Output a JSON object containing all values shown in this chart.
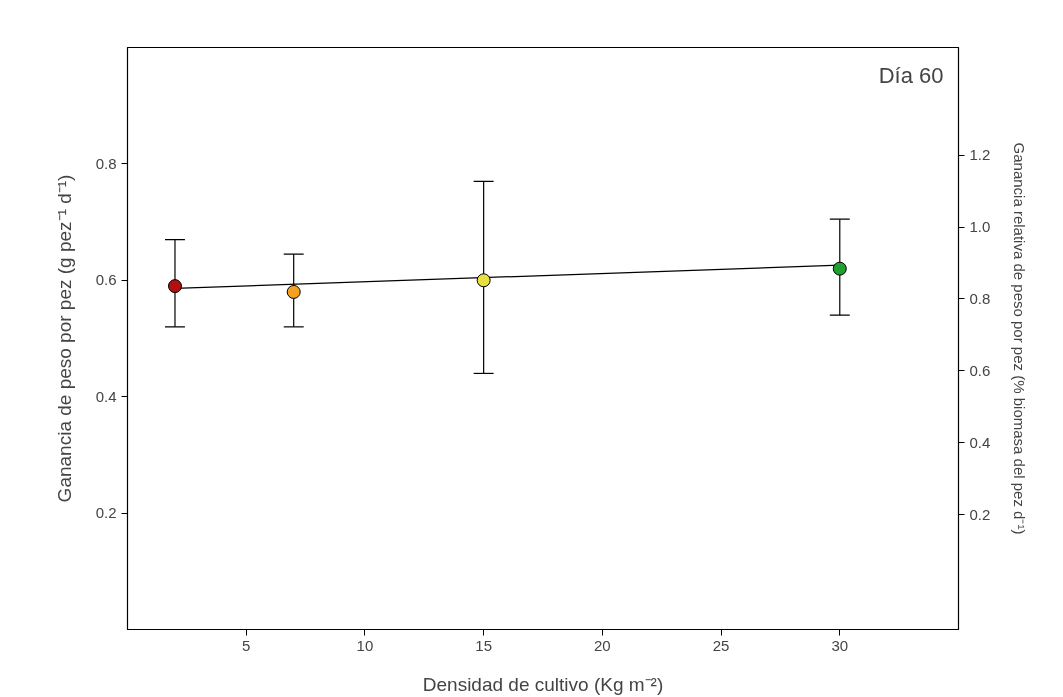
{
  "chart_data": {
    "type": "scatter",
    "xlabel": "Densidad de cultivo (Kg m⁻²)",
    "ylabel": "Ganancia de peso por pez (g pez⁻¹ d⁻¹)",
    "y2label": "Ganancia relativa de peso por pez (% biomasa del pez d⁻¹)",
    "annotations": [
      "Día 60"
    ],
    "xlim": [
      0,
      35
    ],
    "xticks": [
      5,
      10,
      15,
      20,
      25,
      30
    ],
    "ylim": [
      0,
      1.0
    ],
    "yticks": [
      0.2,
      0.4,
      0.6,
      0.8
    ],
    "y2lim": [
      -0.12,
      1.5
    ],
    "y2ticks": [
      0.2,
      0.4,
      0.6,
      0.8,
      {
        "value": 1.0,
        "label": "1.0"
      },
      1.2
    ],
    "grid": false,
    "marker": "circle",
    "series": [
      {
        "type": "line",
        "marker": "none",
        "color": "#000000",
        "x": [
          2,
          30
        ],
        "values": [
          0.586,
          0.626
        ]
      },
      {
        "x": [
          2,
          7,
          15,
          30
        ],
        "values": [
          0.59,
          0.58,
          0.6,
          0.62
        ],
        "colors": [
          "#b01010",
          "#f5a020",
          "#e8e040",
          "#20a030"
        ],
        "errors": [
          [
            0.52,
            0.67
          ],
          [
            0.52,
            0.645
          ],
          [
            0.44,
            0.77
          ],
          [
            0.54,
            0.705
          ]
        ]
      }
    ]
  }
}
